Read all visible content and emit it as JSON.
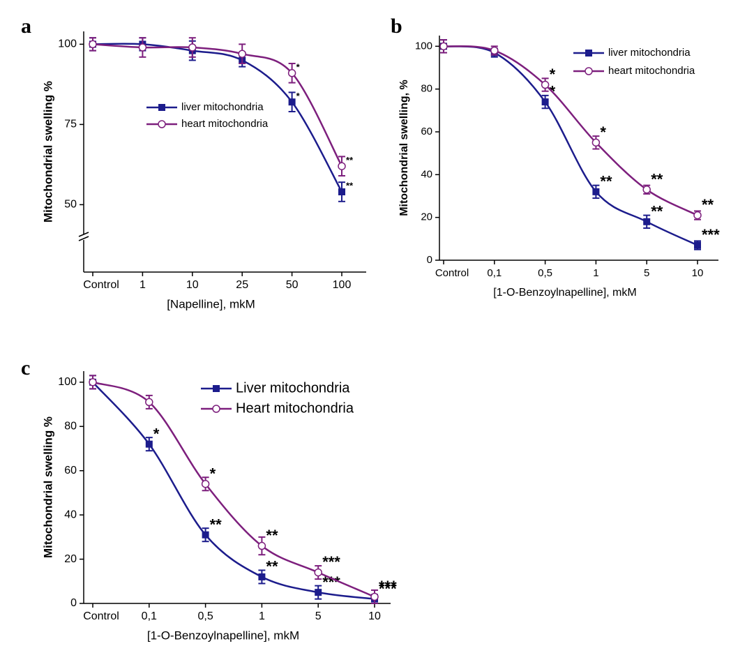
{
  "chart_data": [
    {
      "type": "line",
      "panel": "a",
      "xlabel": "[Napelline], mkM",
      "ylabel": "Mitochondrial swelling %",
      "categories": [
        "Control",
        "1",
        "10",
        "25",
        "50",
        "100"
      ],
      "ylim": [
        29,
        104
      ],
      "yticks": [
        50,
        75,
        100
      ],
      "axis_break": true,
      "series": [
        {
          "name": "liver mitochondria",
          "color": "#1c1c8c",
          "marker": "square",
          "values": [
            100,
            100,
            98,
            95,
            82,
            54
          ],
          "errors": [
            2,
            2,
            3,
            2,
            3,
            3
          ],
          "significance": [
            null,
            null,
            null,
            null,
            "*",
            "**"
          ]
        },
        {
          "name": "heart mitochondria",
          "color": "#7d1f7d",
          "marker": "circle",
          "values": [
            100,
            99,
            99,
            97,
            91,
            62
          ],
          "errors": [
            2,
            3,
            3,
            3,
            3,
            3
          ],
          "significance": [
            null,
            null,
            null,
            null,
            "*",
            "**"
          ]
        }
      ]
    },
    {
      "type": "line",
      "panel": "b",
      "xlabel": "[1-O-Benzoylnapelline], mkM",
      "ylabel": "Mitochondrial swelling, %",
      "categories": [
        "Control",
        "0,1",
        "0,5",
        "1",
        "5",
        "10"
      ],
      "ylim": [
        0,
        105
      ],
      "yticks": [
        0,
        20,
        40,
        60,
        80,
        100
      ],
      "series": [
        {
          "name": "liver mitochondria",
          "color": "#1c1c8c",
          "marker": "square",
          "values": [
            100,
            97,
            74,
            32,
            18,
            7
          ],
          "errors": [
            3,
            2,
            3,
            3,
            3,
            2
          ],
          "significance": [
            null,
            null,
            "*",
            "**",
            "**",
            "***"
          ]
        },
        {
          "name": "heart mitochondria",
          "color": "#7d1f7d",
          "marker": "circle",
          "values": [
            100,
            98,
            82,
            55,
            33,
            21
          ],
          "errors": [
            3,
            2,
            3,
            3,
            2,
            2
          ],
          "significance": [
            null,
            null,
            "*",
            "*",
            "**",
            "**"
          ]
        }
      ]
    },
    {
      "type": "line",
      "panel": "c",
      "xlabel": "[1-O-Benzoylnapelline], mkM",
      "ylabel": "Mitochondrial swelling %",
      "categories": [
        "Control",
        "0,1",
        "0,5",
        "1",
        "5",
        "10"
      ],
      "ylim": [
        0,
        105
      ],
      "yticks": [
        0,
        20,
        40,
        60,
        80,
        100
      ],
      "series": [
        {
          "name": "Liver mitochondria",
          "color": "#1c1c8c",
          "marker": "square",
          "values": [
            100,
            72,
            31,
            12,
            5,
            2
          ],
          "errors": [
            3,
            3,
            3,
            3,
            3,
            2
          ],
          "significance": [
            null,
            "*",
            "**",
            "**",
            "***",
            "***"
          ]
        },
        {
          "name": "Heart mitochondria",
          "color": "#7d1f7d",
          "marker": "circle",
          "values": [
            100,
            91,
            54,
            26,
            14,
            3
          ],
          "errors": [
            3,
            3,
            3,
            4,
            3,
            3
          ],
          "significance": [
            null,
            null,
            "*",
            "**",
            "***",
            "***"
          ]
        }
      ]
    }
  ]
}
